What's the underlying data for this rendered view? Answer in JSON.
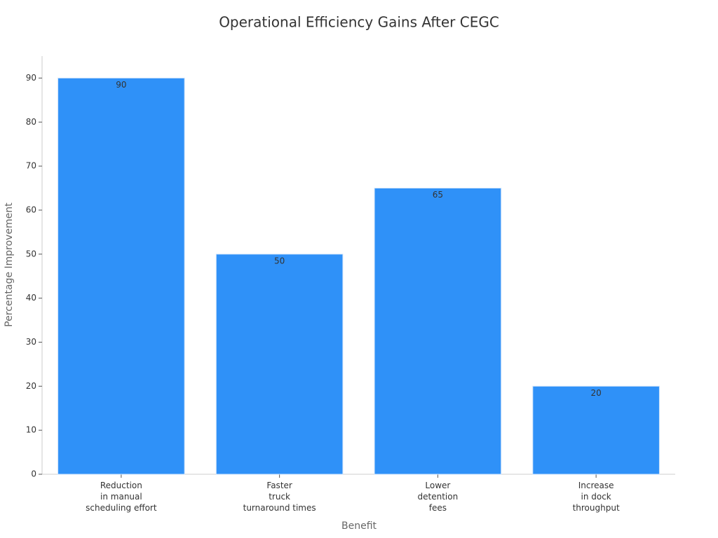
{
  "chart_data": {
    "type": "bar",
    "title": "Operational Efficiency Gains After CEGC",
    "x_label": "Benefit",
    "y_label": "Percentage Improvement",
    "categories": [
      [
        "Reduction",
        "in manual",
        "scheduling effort"
      ],
      [
        "Faster",
        "truck",
        "turnaround times"
      ],
      [
        "Lower",
        "detention",
        "fees"
      ],
      [
        "Increase",
        "in dock",
        "throughput"
      ]
    ],
    "values": [
      90,
      50,
      65,
      20
    ],
    "color": "#2f91f8",
    "ylim": [
      0,
      95
    ],
    "yticks": [
      0,
      10,
      20,
      30,
      40,
      50,
      60,
      70,
      80,
      90
    ],
    "grid": false
  }
}
